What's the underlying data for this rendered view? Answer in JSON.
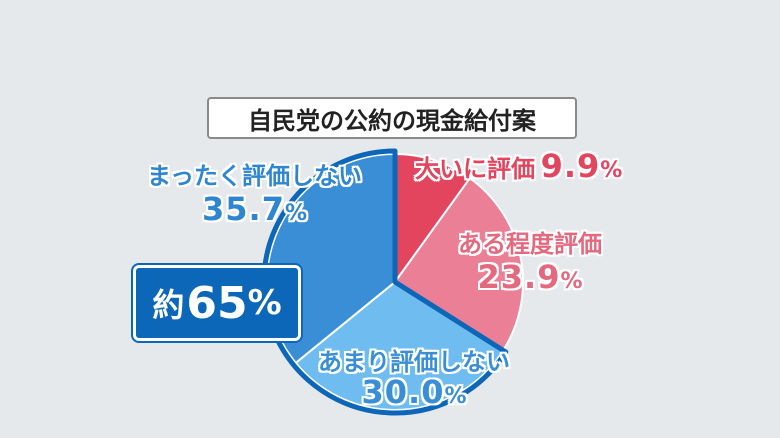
{
  "chart_data": {
    "type": "pie",
    "title": "自民党の公約の現金給付案",
    "slices": [
      {
        "label": "大いに評価",
        "value": 9.9,
        "color": "#e4455e"
      },
      {
        "label": "ある程度評価",
        "value": 23.9,
        "color": "#ea7f95"
      },
      {
        "label": "あまり評価しない",
        "value": 30.0,
        "color": "#6fbdf0"
      },
      {
        "label": "まったく評価しない",
        "value": 35.7,
        "color": "#3a8ed6"
      }
    ],
    "summary": {
      "prefix": "約",
      "value": "65",
      "unit": "%"
    },
    "highlight_color": "#0d67b8"
  }
}
